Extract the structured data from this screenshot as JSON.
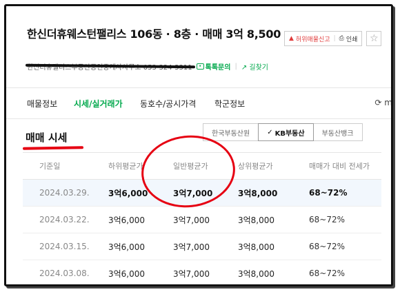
{
  "header": {
    "title": "한신더휴웨스턴팰리스 106동 · 8층 · 매매 3억 8,500",
    "report_label": "허위매물신고",
    "print_label": "인쇄",
    "agency_name": "한신더휴팰리스부동산공인중개사사무소 053-324-3311",
    "chat_label": "톡톡문의",
    "directions_label": "길찾기"
  },
  "tabs": [
    {
      "label": "매물정보"
    },
    {
      "label": "시세/실거래가"
    },
    {
      "label": "동호수/공시가격"
    },
    {
      "label": "학군정보"
    }
  ],
  "tabs_extra": "m",
  "section": {
    "title": "매매 시세",
    "sources": [
      {
        "label": "한국부동산원"
      },
      {
        "label": "KB부동산"
      },
      {
        "label": "부동산뱅크"
      }
    ]
  },
  "table": {
    "headers": [
      "기준일",
      "하위평균가",
      "일반평균가",
      "상위평균가",
      "매매가 대비 전세가"
    ],
    "rows": [
      [
        "2024.03.29.",
        "3억6,000",
        "3억7,000",
        "3억8,000",
        "68~72%"
      ],
      [
        "2024.03.22.",
        "3억6,000",
        "3억7,000",
        "3억8,000",
        "68~72%"
      ],
      [
        "2024.03.15.",
        "3억6,000",
        "3억7,000",
        "3억8,000",
        "68~72%"
      ],
      [
        "2024.03.08.",
        "3억6,000",
        "3억7,000",
        "3억8,000",
        "68~72%"
      ]
    ]
  },
  "colors": {
    "accent_green": "#03a94d",
    "annotation_red": "#e60012",
    "highlight_row": "#f2f7fd"
  }
}
